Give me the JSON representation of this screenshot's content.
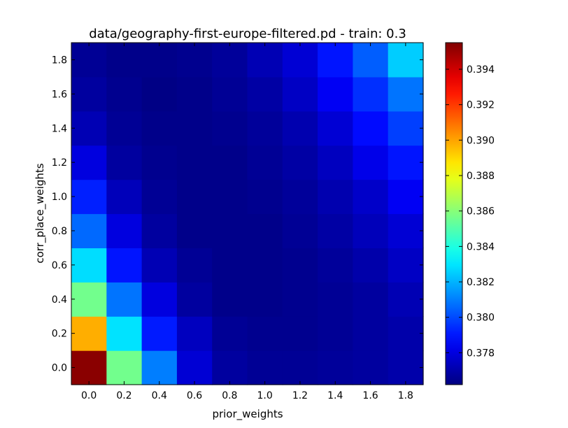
{
  "chart_data": {
    "type": "heatmap",
    "title": "data/geography-first-europe-filtered.pd - train: 0.3",
    "xlabel": "prior_weights",
    "ylabel": "corr_place_weights",
    "x": [
      0.0,
      0.2,
      0.4,
      0.6,
      0.8,
      1.0,
      1.2,
      1.4,
      1.6,
      1.8
    ],
    "y": [
      0.0,
      0.2,
      0.4,
      0.6,
      0.8,
      1.0,
      1.2,
      1.4,
      1.6,
      1.8
    ],
    "x_tick_labels": [
      "0.0",
      "0.2",
      "0.4",
      "0.6",
      "0.8",
      "1.0",
      "1.2",
      "1.4",
      "1.6",
      "1.8"
    ],
    "y_tick_labels": [
      "0.0",
      "0.2",
      "0.4",
      "0.6",
      "0.8",
      "1.0",
      "1.2",
      "1.4",
      "1.6",
      "1.8"
    ],
    "values": [
      [
        0.3953,
        0.3856,
        0.381,
        0.3778,
        0.3768,
        0.3766,
        0.3766,
        0.3767,
        0.3768,
        0.377
      ],
      [
        0.3898,
        0.3829,
        0.3791,
        0.3774,
        0.3766,
        0.3765,
        0.3765,
        0.3766,
        0.3768,
        0.377
      ],
      [
        0.3856,
        0.3808,
        0.378,
        0.3768,
        0.3764,
        0.3764,
        0.3765,
        0.3766,
        0.3768,
        0.3772
      ],
      [
        0.3828,
        0.379,
        0.3772,
        0.3766,
        0.3764,
        0.3764,
        0.3765,
        0.3767,
        0.377,
        0.3775
      ],
      [
        0.3806,
        0.378,
        0.3768,
        0.3764,
        0.3764,
        0.3764,
        0.3766,
        0.3769,
        0.3773,
        0.3778
      ],
      [
        0.3792,
        0.3773,
        0.3766,
        0.3764,
        0.3764,
        0.3765,
        0.3767,
        0.3771,
        0.3776,
        0.3784
      ],
      [
        0.378,
        0.3768,
        0.3765,
        0.3764,
        0.3764,
        0.3766,
        0.3769,
        0.3774,
        0.3782,
        0.379
      ],
      [
        0.3772,
        0.3766,
        0.3764,
        0.3764,
        0.3765,
        0.3767,
        0.3771,
        0.3778,
        0.3788,
        0.3798
      ],
      [
        0.3768,
        0.3765,
        0.3763,
        0.3764,
        0.3766,
        0.3769,
        0.3775,
        0.3784,
        0.3795,
        0.3808
      ],
      [
        0.3766,
        0.3764,
        0.3764,
        0.3765,
        0.3767,
        0.3772,
        0.3778,
        0.379,
        0.3804,
        0.3825
      ]
    ],
    "colormap": "jet",
    "vmin": 0.3762,
    "vmax": 0.3955,
    "colorbar_ticks": [
      0.378,
      0.38,
      0.382,
      0.384,
      0.386,
      0.388,
      0.39,
      0.392,
      0.394
    ],
    "colorbar_tick_labels": [
      "0.378",
      "0.380",
      "0.382",
      "0.384",
      "0.386",
      "0.388",
      "0.390",
      "0.392",
      "0.394"
    ]
  }
}
